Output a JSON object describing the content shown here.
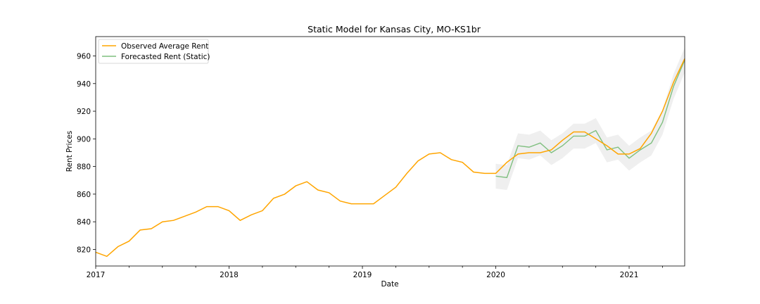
{
  "chart_data": {
    "type": "line",
    "title": "Static Model for Kansas City, MO-KS1br",
    "xlabel": "Date",
    "ylabel": "Rent Prices",
    "xlim": [
      "2017-01",
      "2021-06"
    ],
    "ylim": [
      808,
      974
    ],
    "x_ticks": [
      "2017",
      "2018",
      "2019",
      "2020",
      "2021"
    ],
    "y_ticks": [
      820,
      840,
      860,
      880,
      900,
      920,
      940,
      960
    ],
    "grid": false,
    "legend_position": "upper-left",
    "colors": {
      "observed": "#FFA500",
      "forecast": "#7FBF7F",
      "confidence_band": "#E5E5E5"
    },
    "series": [
      {
        "name": "Observed Average Rent",
        "x": [
          "2017-01",
          "2017-02",
          "2017-03",
          "2017-04",
          "2017-05",
          "2017-06",
          "2017-07",
          "2017-08",
          "2017-09",
          "2017-10",
          "2017-11",
          "2017-12",
          "2018-01",
          "2018-02",
          "2018-03",
          "2018-04",
          "2018-05",
          "2018-06",
          "2018-07",
          "2018-08",
          "2018-09",
          "2018-10",
          "2018-11",
          "2018-12",
          "2019-01",
          "2019-02",
          "2019-03",
          "2019-04",
          "2019-05",
          "2019-06",
          "2019-07",
          "2019-08",
          "2019-09",
          "2019-10",
          "2019-11",
          "2019-12",
          "2020-01",
          "2020-02",
          "2020-03",
          "2020-04",
          "2020-05",
          "2020-06",
          "2020-07",
          "2020-08",
          "2020-09",
          "2020-10",
          "2020-11",
          "2020-12",
          "2021-01",
          "2021-02",
          "2021-03",
          "2021-04",
          "2021-05",
          "2021-06"
        ],
        "values": [
          818,
          815,
          822,
          826,
          834,
          835,
          840,
          841,
          844,
          847,
          851,
          851,
          848,
          841,
          845,
          848,
          857,
          860,
          866,
          869,
          863,
          861,
          855,
          853,
          853,
          853,
          859,
          865,
          875,
          884,
          889,
          890,
          885,
          883,
          876,
          875,
          875,
          883,
          889,
          890,
          890,
          892,
          899,
          905,
          905,
          900,
          895,
          889,
          889,
          893,
          904,
          920,
          941,
          958
        ]
      },
      {
        "name": "Forecasted Rent (Static)",
        "x": [
          "2020-01",
          "2020-02",
          "2020-03",
          "2020-04",
          "2020-05",
          "2020-06",
          "2020-07",
          "2020-08",
          "2020-09",
          "2020-10",
          "2020-11",
          "2020-12",
          "2021-01",
          "2021-02",
          "2021-03",
          "2021-04",
          "2021-05",
          "2021-06"
        ],
        "values": [
          873,
          872,
          895,
          894,
          897,
          890,
          895,
          902,
          902,
          906,
          892,
          894,
          886,
          892,
          897,
          912,
          938,
          957
        ],
        "lower": [
          864,
          863,
          886,
          885,
          888,
          881,
          886,
          893,
          893,
          897,
          883,
          885,
          877,
          883,
          888,
          903,
          929,
          948
        ],
        "upper": [
          882,
          881,
          904,
          903,
          906,
          899,
          904,
          911,
          911,
          915,
          901,
          903,
          895,
          901,
          906,
          921,
          947,
          966
        ]
      }
    ]
  }
}
